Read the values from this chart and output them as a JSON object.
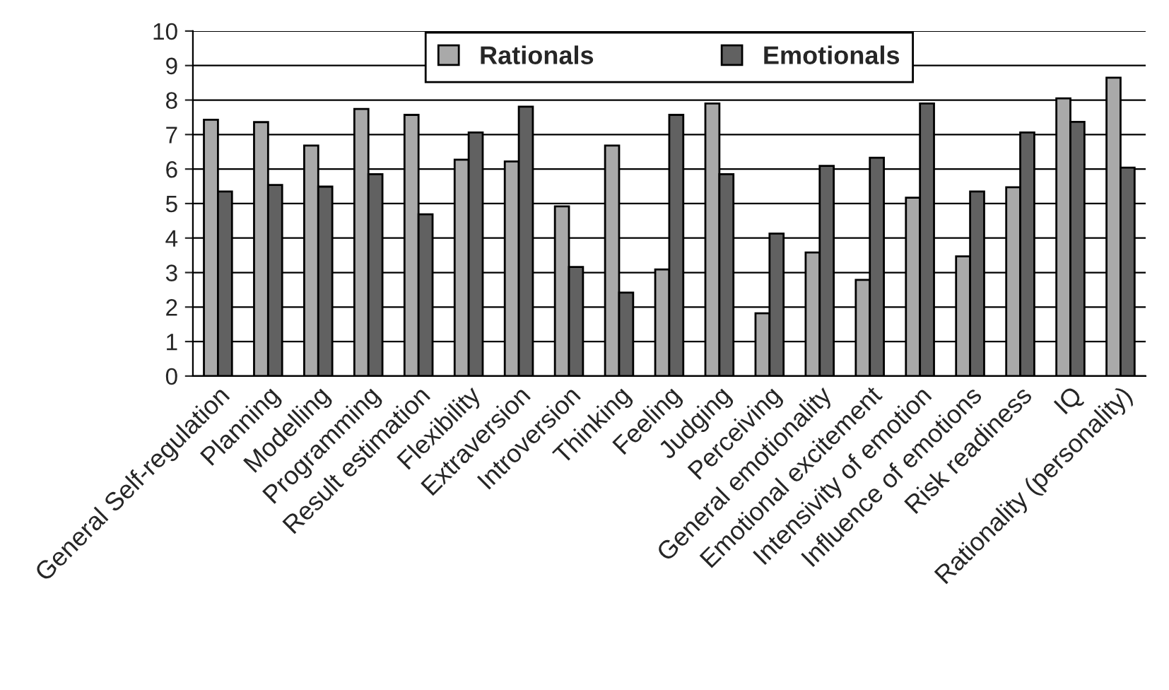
{
  "chart_data": {
    "type": "bar",
    "categories": [
      "General Self-regulation",
      "Planning",
      "Modelling",
      "Programming",
      "Result estimation",
      "Flexibility",
      "Extraversion",
      "Introversion",
      "Thinking",
      "Feeling",
      "Judging",
      "Perceiving",
      "General emotionality",
      "Emotional excitement",
      "Intensivity of emotion",
      "Influence of emotions",
      "Risk readiness",
      "IQ",
      "Rationality (personality)"
    ],
    "series": [
      {
        "name": "Rationals",
        "color": "#a9a9a9",
        "values": [
          7.43,
          7.36,
          6.68,
          7.74,
          7.57,
          6.27,
          6.22,
          4.92,
          6.68,
          3.09,
          7.9,
          1.82,
          3.58,
          2.79,
          5.17,
          3.47,
          5.47,
          8.05,
          8.65
        ]
      },
      {
        "name": "Emotionals",
        "color": "#616161",
        "values": [
          5.35,
          5.54,
          5.49,
          5.85,
          4.69,
          7.06,
          7.81,
          3.16,
          2.42,
          7.57,
          5.85,
          4.13,
          6.09,
          6.33,
          7.9,
          5.35,
          7.06,
          7.37,
          6.04
        ]
      }
    ],
    "ylim": [
      0,
      10
    ],
    "yticks": [
      0,
      1,
      2,
      3,
      4,
      5,
      6,
      7,
      8,
      9,
      10
    ],
    "grid": "y",
    "legend": "top"
  }
}
